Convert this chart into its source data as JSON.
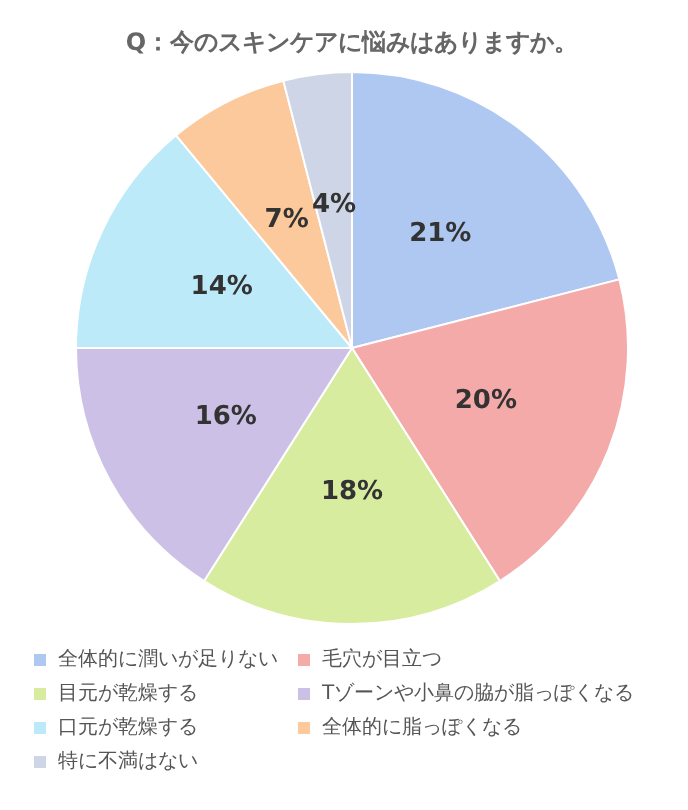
{
  "chart_data": {
    "type": "pie",
    "title": "Q：今のスキンケアに悩みはありますか。",
    "categories": [
      "全体的に潤いが足りない",
      "毛穴が目立つ",
      "目元が乾燥する",
      "Tゾーンや小鼻の脇が脂っぽくなる",
      "口元が乾燥する",
      "全体的に脂っぽくなる",
      "特に不満はない"
    ],
    "values": [
      21,
      20,
      18,
      16,
      14,
      7,
      4
    ],
    "colors": [
      "#aec8f2",
      "#f5aaaa",
      "#d8eca0",
      "#cdc0e6",
      "#bdeaf8",
      "#fbc99c",
      "#cdd5e6"
    ],
    "value_labels": [
      "21%",
      "20%",
      "18%",
      "16%",
      "14%",
      "7%",
      "4%"
    ],
    "legend": "bottom"
  }
}
